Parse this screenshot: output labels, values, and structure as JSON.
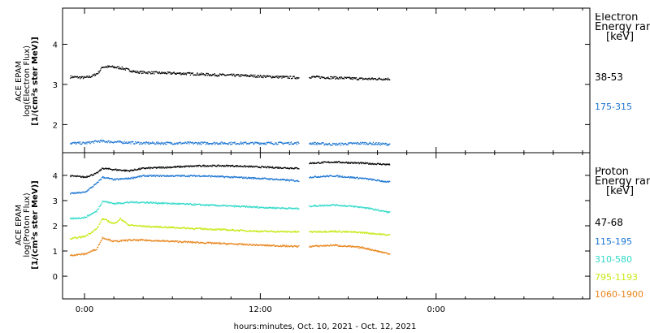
{
  "chart_data": [
    {
      "type": "scatter",
      "panel": "electron",
      "ylabel_lines": [
        "ACE EPAM",
        "log(Electron Flux)",
        "[1/(cm²s ster MeV)]"
      ],
      "ylim": [
        1.3,
        4.9
      ],
      "yticks": [
        2,
        3,
        4
      ],
      "legend_title_lines": [
        "Electron",
        "Energy ranges",
        "[keV]"
      ],
      "series": [
        {
          "name": "38-53",
          "color": "#000000",
          "points": [
            [
              -1,
              3.2
            ],
            [
              0,
              3.18
            ],
            [
              0.5,
              3.22
            ],
            [
              0.9,
              3.3
            ],
            [
              1.2,
              3.45
            ],
            [
              1.8,
              3.45
            ],
            [
              2.5,
              3.42
            ],
            [
              3.5,
              3.32
            ],
            [
              5,
              3.3
            ],
            [
              7,
              3.28
            ],
            [
              9,
              3.25
            ],
            [
              11,
              3.23
            ],
            [
              13,
              3.2
            ],
            [
              14.6,
              3.18
            ],
            [
              15.3,
              3.2
            ],
            [
              17,
              3.18
            ],
            [
              19,
              3.15
            ],
            [
              20.8,
              3.15
            ]
          ]
        },
        {
          "name": "175-315",
          "color": "#1a74d2",
          "points": [
            [
              -1,
              1.55
            ],
            [
              0,
              1.55
            ],
            [
              1,
              1.6
            ],
            [
              2,
              1.58
            ],
            [
              4,
              1.55
            ],
            [
              6,
              1.55
            ],
            [
              8,
              1.55
            ],
            [
              10,
              1.55
            ],
            [
              12,
              1.55
            ],
            [
              14.6,
              1.55
            ],
            [
              15.3,
              1.55
            ],
            [
              17,
              1.52
            ],
            [
              19,
              1.55
            ],
            [
              20.8,
              1.52
            ]
          ]
        }
      ]
    },
    {
      "type": "scatter",
      "panel": "proton",
      "ylabel_lines": [
        "ACE EPAM",
        "log(Proton Flux)",
        "[1/(cm²s ster MeV)]"
      ],
      "ylim": [
        -0.9,
        4.9
      ],
      "yticks": [
        0,
        1,
        2,
        3,
        4
      ],
      "legend_title_lines": [
        "Proton",
        "Energy ranges",
        "[keV]"
      ],
      "series": [
        {
          "name": "47-68",
          "color": "#000000",
          "points": [
            [
              -1,
              4.0
            ],
            [
              0,
              3.95
            ],
            [
              0.8,
              4.1
            ],
            [
              1.2,
              4.3
            ],
            [
              2,
              4.25
            ],
            [
              3,
              4.2
            ],
            [
              4,
              4.3
            ],
            [
              6,
              4.35
            ],
            [
              8,
              4.4
            ],
            [
              10,
              4.4
            ],
            [
              12,
              4.35
            ],
            [
              14.6,
              4.3
            ],
            [
              15.3,
              4.5
            ],
            [
              17,
              4.55
            ],
            [
              19,
              4.5
            ],
            [
              20.8,
              4.45
            ]
          ]
        },
        {
          "name": "115-195",
          "color": "#1a74d2",
          "points": [
            [
              -1,
              3.3
            ],
            [
              0,
              3.35
            ],
            [
              0.8,
              3.7
            ],
            [
              1.2,
              3.95
            ],
            [
              2,
              3.85
            ],
            [
              3,
              3.9
            ],
            [
              4,
              4.0
            ],
            [
              6,
              4.0
            ],
            [
              8,
              4.0
            ],
            [
              10,
              3.95
            ],
            [
              12,
              3.9
            ],
            [
              14.6,
              3.8
            ],
            [
              15.3,
              3.95
            ],
            [
              17,
              4.0
            ],
            [
              19,
              3.9
            ],
            [
              20.8,
              3.75
            ]
          ]
        },
        {
          "name": "310-580",
          "color": "#2fd9c8",
          "points": [
            [
              -1,
              2.3
            ],
            [
              0,
              2.35
            ],
            [
              0.8,
              2.6
            ],
            [
              1.2,
              3.0
            ],
            [
              2,
              2.9
            ],
            [
              3,
              2.95
            ],
            [
              4,
              2.95
            ],
            [
              6,
              2.9
            ],
            [
              8,
              2.85
            ],
            [
              10,
              2.8
            ],
            [
              12,
              2.75
            ],
            [
              14.6,
              2.7
            ],
            [
              15.3,
              2.8
            ],
            [
              17,
              2.85
            ],
            [
              19,
              2.75
            ],
            [
              20.8,
              2.55
            ]
          ]
        },
        {
          "name": "795-1193",
          "color": "#c7e814",
          "points": [
            [
              -1,
              1.5
            ],
            [
              0,
              1.6
            ],
            [
              0.8,
              1.9
            ],
            [
              1.2,
              2.3
            ],
            [
              2,
              2.1
            ],
            [
              2.4,
              2.3
            ],
            [
              3,
              2.05
            ],
            [
              4,
              2.0
            ],
            [
              6,
              1.95
            ],
            [
              8,
              1.9
            ],
            [
              10,
              1.85
            ],
            [
              12,
              1.8
            ],
            [
              14.6,
              1.78
            ],
            [
              15.3,
              1.78
            ],
            [
              17,
              1.8
            ],
            [
              19,
              1.75
            ],
            [
              20.8,
              1.65
            ]
          ]
        },
        {
          "name": "1060-1900",
          "color": "#e8841a",
          "points": [
            [
              -1,
              0.85
            ],
            [
              0,
              0.9
            ],
            [
              0.8,
              1.1
            ],
            [
              1.2,
              1.55
            ],
            [
              2,
              1.4
            ],
            [
              3,
              1.45
            ],
            [
              4,
              1.45
            ],
            [
              6,
              1.4
            ],
            [
              8,
              1.35
            ],
            [
              10,
              1.3
            ],
            [
              12,
              1.25
            ],
            [
              14.6,
              1.2
            ],
            [
              15.3,
              1.2
            ],
            [
              17,
              1.25
            ],
            [
              19,
              1.15
            ],
            [
              20.8,
              0.9
            ]
          ]
        }
      ]
    }
  ],
  "x_axis": {
    "range_hours": [
      -1.5,
      34.5
    ],
    "major_ticks": [
      {
        "hour": 0,
        "label": "0:00"
      },
      {
        "hour": 12,
        "label": "12:00"
      },
      {
        "hour": 24,
        "label": "0:00"
      }
    ],
    "title": "hours:minutes, Oct. 10, 2021 - Oct. 12, 2021",
    "data_gap_hours": [
      14.6,
      15.3
    ]
  }
}
